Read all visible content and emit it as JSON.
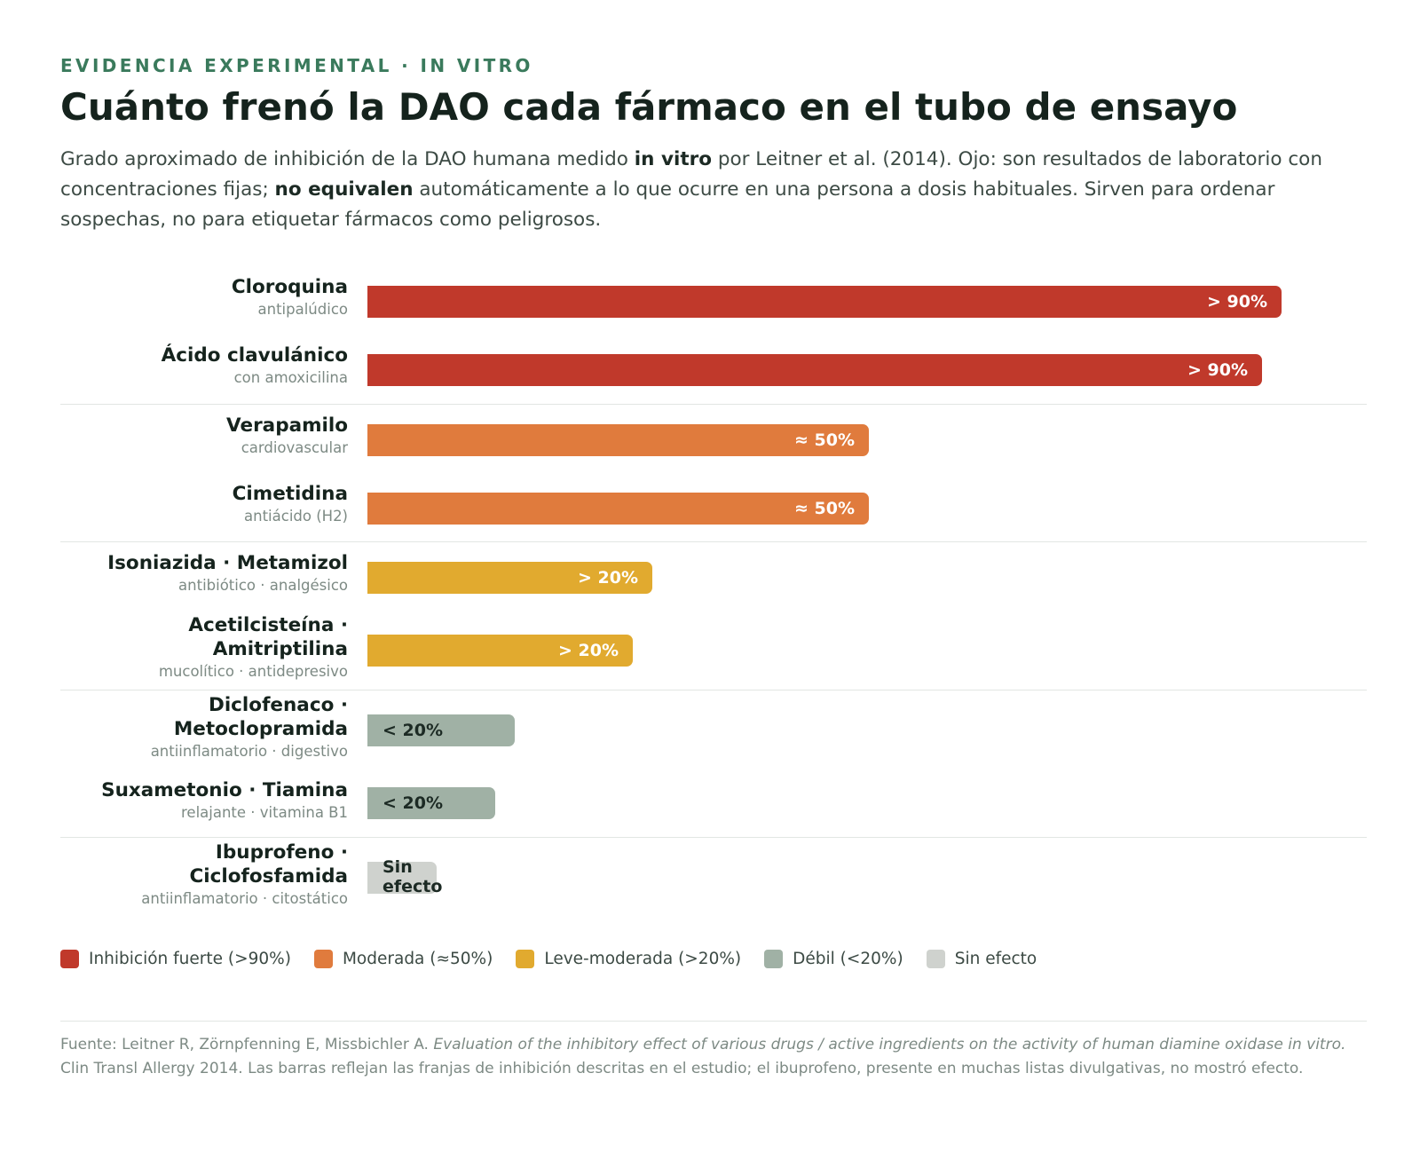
{
  "header": {
    "eyebrow": "EVIDENCIA EXPERIMENTAL · IN VITRO",
    "title": "Cuánto frenó la DAO cada fármaco en el tubo de ensayo",
    "subtitle_parts": [
      "Grado aproximado de inhibición de la DAO humana medido ",
      "in vitro",
      " por Leitner et al. (2014). Ojo: son resultados de laboratorio con concentraciones fijas; ",
      "no equivalen",
      " automáticamente a lo que ocurre en una persona a dosis habituales. Sirven para ordenar sospechas, no para etiquetar fármacos como peligrosos."
    ]
  },
  "colors": {
    "fuerte": "#c0392b",
    "moderada": "#e07b3d",
    "leve": "#e1aa2f",
    "debil": "#a0b1a5",
    "sin": "#cfd2ce"
  },
  "chart_data": {
    "type": "bar",
    "orientation": "horizontal",
    "unit": "% inhibición DAO (aprox.)",
    "xlim": [
      0,
      100
    ],
    "rows": [
      {
        "name": "Cloroquina",
        "sub": "antipalúdico",
        "value": 93,
        "label": "> 90%",
        "class": "fuerte"
      },
      {
        "name": "Ácido clavulánico",
        "sub": "con amoxicilina",
        "value": 91,
        "label": "> 90%",
        "class": "fuerte"
      },
      {
        "name": "Verapamilo",
        "sub": "cardiovascular",
        "value": 51,
        "label": "≈ 50%",
        "class": "moderada"
      },
      {
        "name": "Cimetidina",
        "sub": "antiácido (H2)",
        "value": 51,
        "label": "≈ 50%",
        "class": "moderada"
      },
      {
        "name": "Isoniazida · Metamizol",
        "sub": "antibiótico · analgésico",
        "value": 29,
        "label": "> 20%",
        "class": "leve"
      },
      {
        "name": "Acetilcisteína · Amitriptilina",
        "sub": "mucolítico · antidepresivo",
        "value": 27,
        "label": "> 20%",
        "class": "leve"
      },
      {
        "name": "Diclofenaco · Metoclopramida",
        "sub": "antiinflamatorio · digestivo",
        "value": 15,
        "label": "< 20%",
        "class": "debil"
      },
      {
        "name": "Suxametonio · Tiamina",
        "sub": "relajante · vitamina B1",
        "value": 13,
        "label": "< 20%",
        "class": "debil"
      },
      {
        "name": "Ibuprofeno · Ciclofosfamida",
        "sub": "antiinflamatorio · citostático",
        "value": 7,
        "label": "Sin efecto",
        "class": "sin"
      }
    ],
    "groups": [
      "fuerte",
      "moderada",
      "leve",
      "debil",
      "sin"
    ]
  },
  "legend": [
    {
      "label": "Inhibición fuerte (>90%)",
      "class": "fuerte"
    },
    {
      "label": "Moderada (≈50%)",
      "class": "moderada"
    },
    {
      "label": "Leve-moderada (>20%)",
      "class": "leve"
    },
    {
      "label": "Débil (<20%)",
      "class": "debil"
    },
    {
      "label": "Sin efecto",
      "class": "sin"
    }
  ],
  "footnote": {
    "prefix": "Fuente: Leitner R, Zörnpfenning E, Missbichler A. ",
    "italic": "Evaluation of the inhibitory effect of various drugs / active ingredients on the activity of human diamine oxidase in vitro.",
    "suffix": " Clin Transl Allergy 2014. Las barras reflejan las franjas de inhibición descritas en el estudio; el ibuprofeno, presente en muchas listas divulgativas, no mostró efecto."
  }
}
